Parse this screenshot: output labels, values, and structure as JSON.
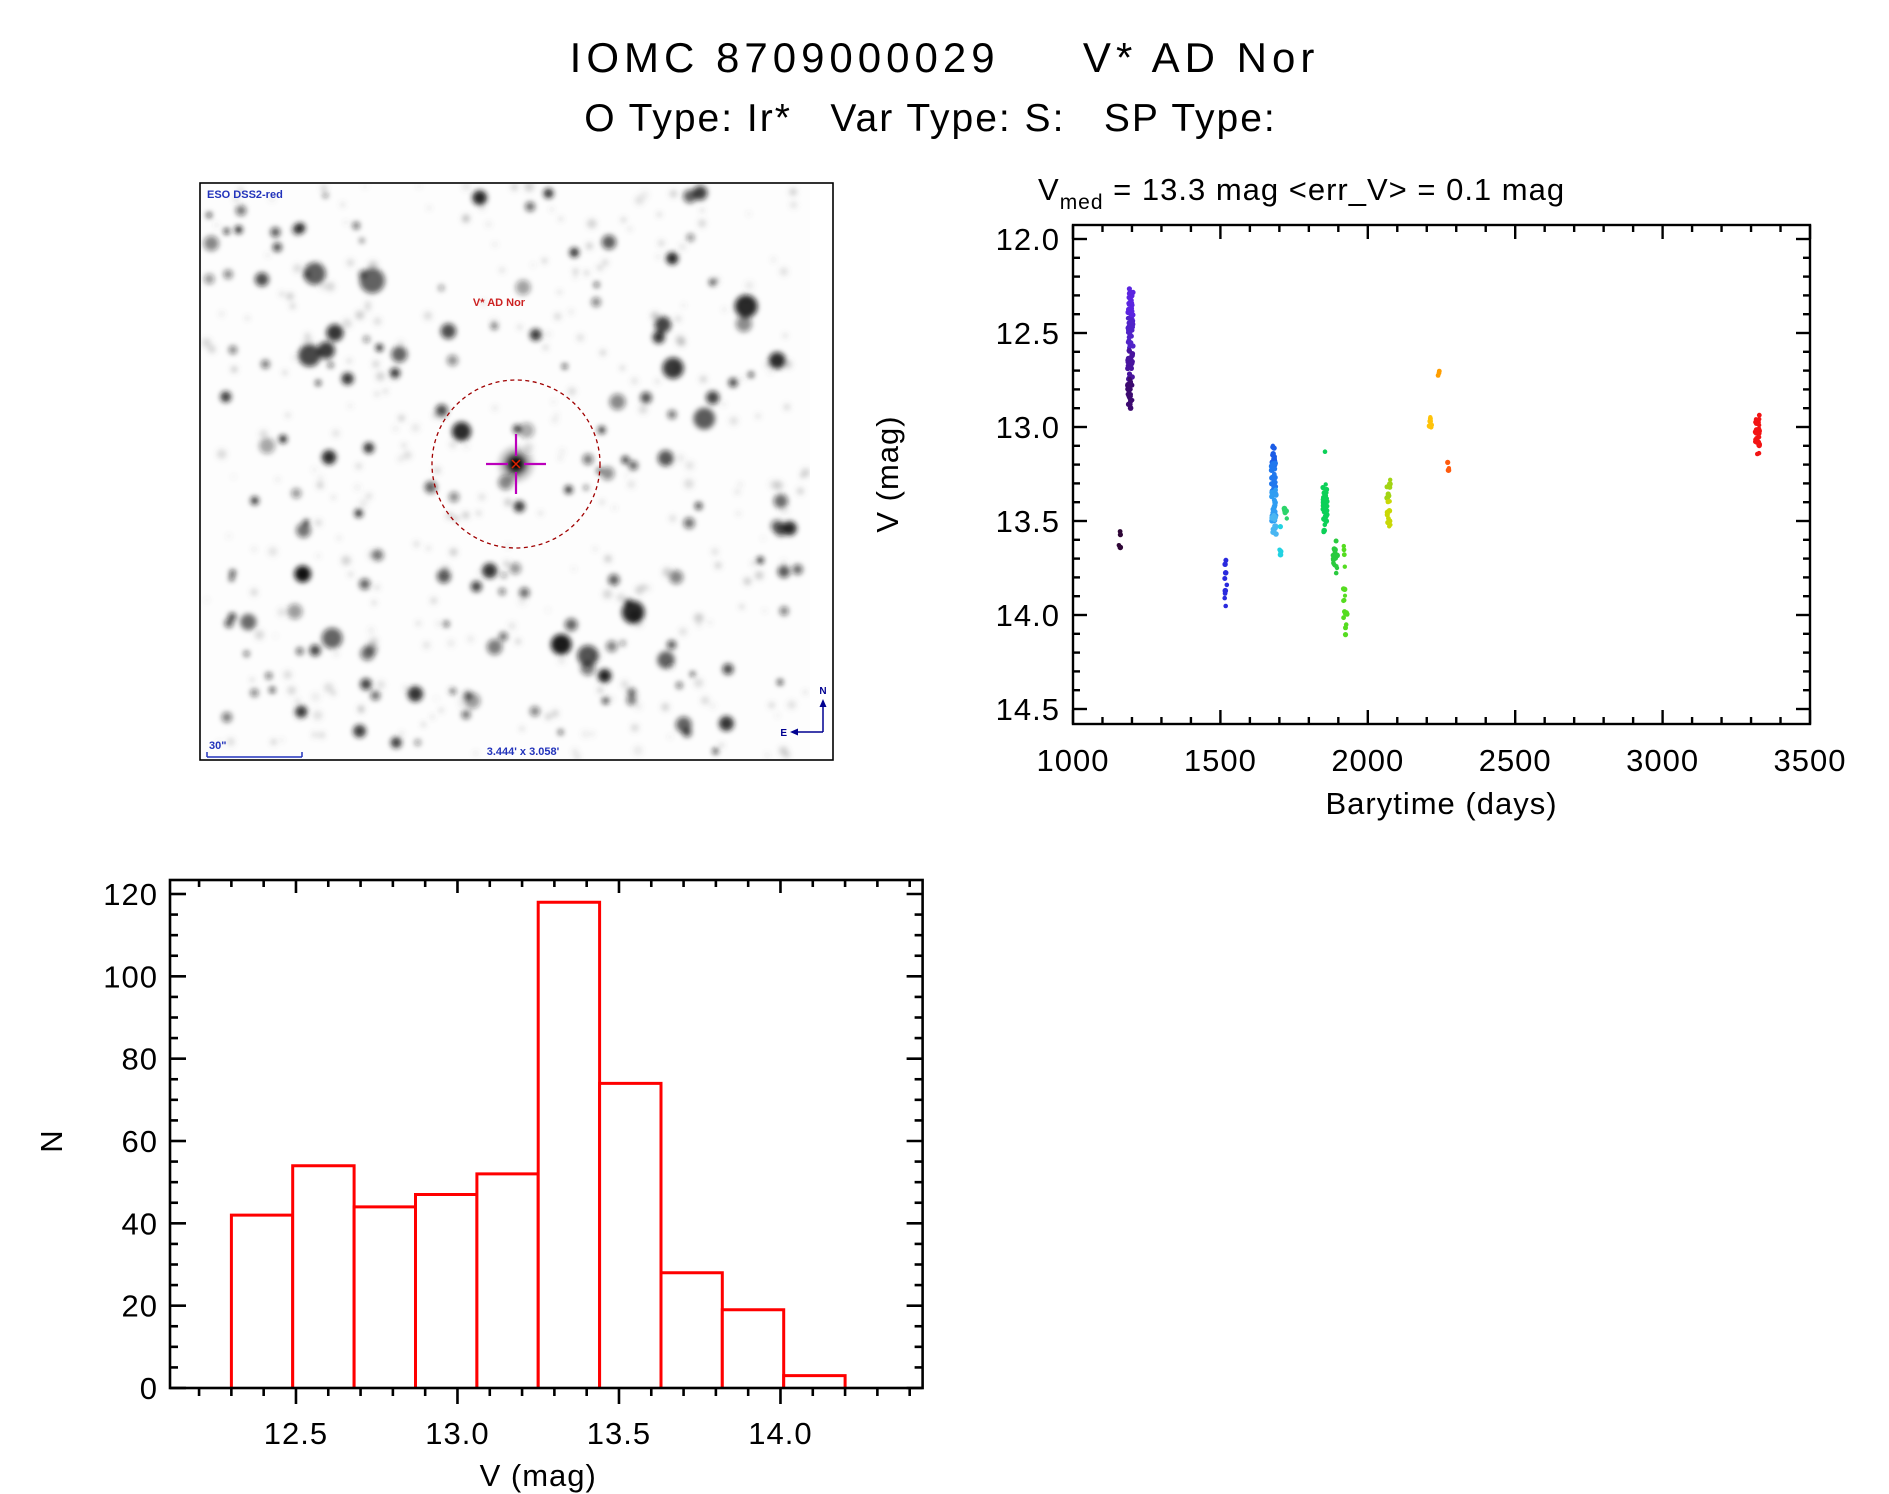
{
  "header": {
    "title": "IOMC 8709000029     V* AD Nor",
    "subtitle": "O Type: Ir*   Var Type: S:   SP Type:"
  },
  "starfield": {
    "survey_label": "ESO DSS2-red",
    "target_label": "V* AD Nor",
    "scale_label": "30\"",
    "fov_label": "3.444' x 3.058'",
    "compass_north": "N",
    "compass_east": "E",
    "colors": {
      "annotation_blue": "#2233bb",
      "target_red": "#cc2222",
      "circle_dark_red": "#a00000",
      "cross_magenta": "#bb00bb",
      "center_mark_red": "#dd2200",
      "compass_navy": "#000090"
    }
  },
  "chart_data": [
    {
      "id": "lightcurve",
      "type": "scatter",
      "title": "V_med = 13.3 mag <err_V> = 0.1 mag",
      "title_main": "V",
      "title_sub": "med",
      "title_rest": " = 13.3 mag  <err_V> = 0.1 mag",
      "xlabel": "Barytime (days)",
      "ylabel": "V (mag)",
      "xlim": [
        1000,
        3500
      ],
      "ylim_top": 12.0,
      "ylim_bottom": 14.5,
      "x_ticks": [
        1000,
        1500,
        2000,
        2500,
        3000,
        3500
      ],
      "x_tick_labels": [
        "1000",
        "1500",
        "2000",
        "2500",
        "3000",
        "3500"
      ],
      "x_minor_step": 100,
      "y_ticks": [
        12.0,
        12.5,
        13.0,
        13.5,
        14.0,
        14.5
      ],
      "y_tick_labels": [
        "12.0",
        "12.5",
        "13.0",
        "13.5",
        "14.0",
        "14.5"
      ],
      "y_minor_step": 0.1,
      "y_axis_reversed_note": "brighter (smaller mag) at top",
      "clusters": [
        {
          "t": 1159,
          "dx": 1.0,
          "color": "#2e0636",
          "segments": [
            {
              "v0": 13.54,
              "v1": 13.67,
              "n": 4
            }
          ]
        },
        {
          "t": 1195,
          "dx": 2.5,
          "color": "#5b24e0",
          "segments": [
            {
              "v0": 12.26,
              "v1": 12.44,
              "n": 28
            }
          ]
        },
        {
          "t": 1195,
          "dx": 2.5,
          "color": "#5023c8",
          "segments": [
            {
              "v0": 12.42,
              "v1": 12.58,
              "n": 30
            }
          ]
        },
        {
          "t": 1194,
          "dx": 2.5,
          "color": "#48149e",
          "segments": [
            {
              "v0": 12.59,
              "v1": 12.75,
              "n": 26
            }
          ]
        },
        {
          "t": 1193,
          "dx": 2.5,
          "color": "#3c0a70",
          "segments": [
            {
              "v0": 12.74,
              "v1": 12.9,
              "n": 26
            }
          ]
        },
        {
          "t": 1517,
          "dx": 1.5,
          "color": "#2a2ade",
          "segments": [
            {
              "v0": 13.7,
              "v1": 13.92,
              "n": 8
            },
            {
              "v0": 13.95,
              "v1": 13.97,
              "n": 1
            }
          ]
        },
        {
          "t": 1679,
          "dx": 2.0,
          "color": "#1b5ce6",
          "segments": [
            {
              "v0": 13.09,
              "v1": 13.22,
              "n": 14
            }
          ]
        },
        {
          "t": 1680,
          "dx": 2.2,
          "color": "#2178ee",
          "segments": [
            {
              "v0": 13.18,
              "v1": 13.36,
              "n": 34
            }
          ]
        },
        {
          "t": 1681,
          "dx": 2.2,
          "color": "#2f9df2",
          "segments": [
            {
              "v0": 13.33,
              "v1": 13.5,
              "n": 34
            }
          ]
        },
        {
          "t": 1682,
          "dx": 2.0,
          "color": "#49b6f2",
          "segments": [
            {
              "v0": 13.47,
              "v1": 13.58,
              "n": 12
            }
          ]
        },
        {
          "t": 1703,
          "dx": 1.0,
          "color": "#22d2e2",
          "segments": [
            {
              "v0": 13.52,
              "v1": 13.54,
              "n": 1
            },
            {
              "v0": 13.63,
              "v1": 13.7,
              "n": 3
            }
          ]
        },
        {
          "t": 1721,
          "dx": 1.5,
          "color": "#2cd46a",
          "segments": [
            {
              "v0": 13.42,
              "v1": 13.49,
              "n": 6
            }
          ]
        },
        {
          "t": 1855,
          "dx": 2.2,
          "color": "#0cd058",
          "segments": [
            {
              "v0": 13.13,
              "v1": 13.16,
              "n": 1
            },
            {
              "v0": 13.29,
              "v1": 13.56,
              "n": 38
            }
          ]
        },
        {
          "t": 1889,
          "dx": 2.0,
          "color": "#2aca3e",
          "segments": [
            {
              "v0": 13.59,
              "v1": 13.78,
              "n": 16
            }
          ]
        },
        {
          "t": 1924,
          "dx": 2.0,
          "color": "#55dc20",
          "segments": [
            {
              "v0": 13.59,
              "v1": 13.75,
              "n": 4
            },
            {
              "v0": 13.82,
              "v1": 14.08,
              "n": 13
            },
            {
              "v0": 14.1,
              "v1": 14.12,
              "n": 1
            }
          ]
        },
        {
          "t": 2071,
          "dx": 2.0,
          "color": "#a2d413",
          "segments": [
            {
              "v0": 13.27,
              "v1": 13.41,
              "n": 8
            }
          ]
        },
        {
          "t": 2072,
          "dx": 2.0,
          "color": "#c9d806",
          "segments": [
            {
              "v0": 13.39,
              "v1": 13.54,
              "n": 10
            }
          ]
        },
        {
          "t": 2213,
          "dx": 1.2,
          "color": "#ffc30a",
          "segments": [
            {
              "v0": 12.94,
              "v1": 13.06,
              "n": 6
            }
          ]
        },
        {
          "t": 2240,
          "dx": 1.0,
          "color": "#ff9e00",
          "segments": [
            {
              "v0": 12.63,
              "v1": 12.74,
              "n": 3
            }
          ]
        },
        {
          "t": 2273,
          "dx": 1.0,
          "color": "#ff5a0c",
          "segments": [
            {
              "v0": 13.18,
              "v1": 13.23,
              "n": 3
            }
          ]
        },
        {
          "t": 3322,
          "dx": 2.2,
          "color": "#f21414",
          "segments": [
            {
              "v0": 12.87,
              "v1": 12.97,
              "n": 4
            },
            {
              "v0": 12.97,
              "v1": 13.15,
              "n": 34
            }
          ]
        }
      ]
    },
    {
      "id": "magnitude-histogram",
      "type": "bar",
      "xlabel": "V (mag)",
      "ylabel": "N",
      "bar_color": "#ff0000",
      "bin_start": 12.3,
      "bin_width": 0.19,
      "counts": [
        42,
        54,
        44,
        47,
        52,
        118,
        74,
        28,
        19,
        3
      ],
      "x_ticks": [
        12.5,
        13.0,
        13.5,
        14.0
      ],
      "x_tick_labels": [
        "12.5",
        "13.0",
        "13.5",
        "14.0"
      ],
      "x_minor_step": 0.1,
      "y_ticks": [
        0,
        20,
        40,
        60,
        80,
        100,
        120
      ],
      "y_tick_labels": [
        "0",
        "20",
        "40",
        "60",
        "80",
        "100",
        "120"
      ],
      "y_minor_step": 5,
      "xlim": [
        12.11,
        14.44
      ],
      "ylim": [
        0,
        123
      ]
    }
  ]
}
